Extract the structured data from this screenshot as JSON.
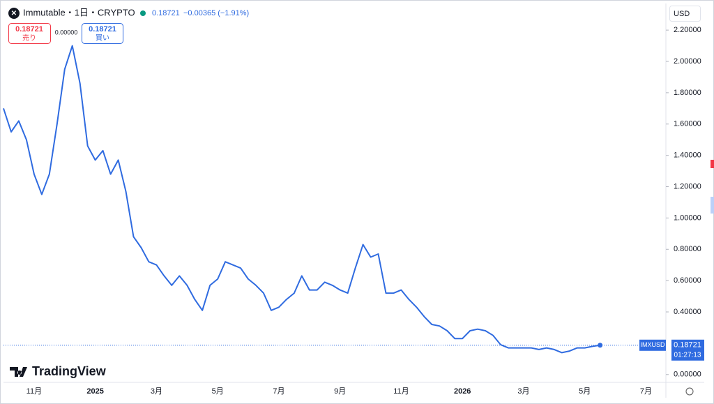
{
  "chart_data": {
    "type": "line",
    "title": "Immutable・1日・CRYPTO",
    "categories": [
      null,
      null,
      null,
      null,
      "11月",
      null,
      null,
      null,
      null,
      null,
      null,
      null,
      "2025",
      null,
      null,
      null,
      null,
      null,
      null,
      null,
      "3月",
      null,
      null,
      null,
      null,
      null,
      null,
      null,
      "5月",
      null,
      null,
      null,
      null,
      null,
      null,
      null,
      "7月",
      null,
      null,
      null,
      null,
      null,
      null,
      null,
      "9月",
      null,
      null,
      null,
      null,
      null,
      null,
      null,
      "11月",
      null,
      null,
      null,
      null,
      null,
      null,
      null,
      "2026",
      null,
      null,
      null,
      null,
      null,
      null,
      null,
      "3月",
      null,
      null,
      null,
      null,
      null,
      null,
      null,
      "5月",
      null,
      null,
      null,
      null,
      null,
      null,
      null,
      "7月",
      null,
      null
    ],
    "series": [
      {
        "name": "IMXUSD",
        "color": "#2f6be0",
        "values": [
          1.7,
          1.55,
          1.62,
          1.5,
          1.28,
          1.15,
          1.28,
          1.6,
          1.95,
          2.1,
          1.86,
          1.46,
          1.37,
          1.43,
          1.28,
          1.37,
          1.17,
          0.88,
          0.81,
          0.72,
          0.7,
          0.63,
          0.57,
          0.63,
          0.57,
          0.48,
          0.41,
          0.57,
          0.61,
          0.72,
          0.7,
          0.68,
          0.61,
          0.57,
          0.52,
          0.41,
          0.43,
          0.48,
          0.52,
          0.63,
          0.54,
          0.54,
          0.59,
          0.57,
          0.54,
          0.52,
          0.68,
          0.83,
          0.75,
          0.77,
          0.52,
          0.52,
          0.54,
          0.48,
          0.43,
          0.37,
          0.32,
          0.31,
          0.28,
          0.23,
          0.23,
          0.28,
          0.29,
          0.28,
          0.25,
          0.19,
          0.17,
          0.17,
          0.17,
          0.17,
          0.16,
          0.17,
          0.16,
          0.14,
          0.15,
          0.17,
          0.17,
          0.18,
          0.18721,
          null,
          null,
          null,
          null,
          null,
          null,
          null,
          null
        ]
      }
    ],
    "ylim": [
      -0.05,
      2.37
    ],
    "yticks": [
      {
        "value": 0,
        "label": "0.00000"
      },
      {
        "value": 0.4,
        "label": "0.40000"
      },
      {
        "value": 0.6,
        "label": "0.60000"
      },
      {
        "value": 0.8,
        "label": "0.80000"
      },
      {
        "value": 1.0,
        "label": "1.00000"
      },
      {
        "value": 1.2,
        "label": "1.20000"
      },
      {
        "value": 1.4,
        "label": "1.40000"
      },
      {
        "value": 1.6,
        "label": "1.60000"
      },
      {
        "value": 1.8,
        "label": "1.80000"
      },
      {
        "value": 2.0,
        "label": "2.00000"
      },
      {
        "value": 2.2,
        "label": "2.20000"
      }
    ],
    "grid": false
  },
  "ui": {
    "last_price": "0.18721",
    "change": "−0.00365 (−1.91%)",
    "sell_price": "0.18721",
    "sell_label": "売り",
    "spread": "0.00000",
    "buy_price": "0.18721",
    "buy_label": "買い",
    "currency": "USD",
    "countdown": "01:27:13",
    "logo": "TradingView"
  }
}
